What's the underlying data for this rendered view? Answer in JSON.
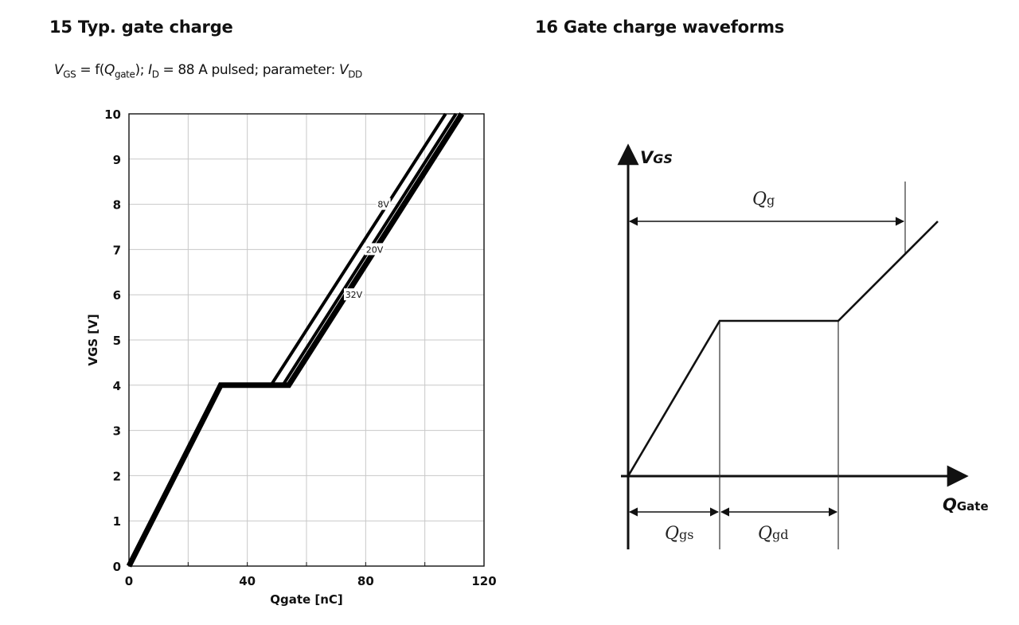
{
  "titles": {
    "left": "15 Typ. gate charge",
    "right": "16 Gate charge waveforms"
  },
  "subtitle": {
    "vgs_v": "V",
    "vgs_sub": "GS",
    "eq": " = f(",
    "q_q": "Q",
    "q_sub": "gate",
    "mid": "); ",
    "id_i": "I",
    "id_sub": "D",
    "rest": " = 88 A pulsed; parameter: ",
    "vdd_v": "V",
    "vdd_sub": "DD"
  },
  "chart_data": [
    {
      "type": "line",
      "xlabel": "Qgate [nC]",
      "ylabel": "VGS [V]",
      "xlim": [
        0,
        120
      ],
      "ylim": [
        0,
        10
      ],
      "x_ticks": [
        "0",
        "40",
        "80",
        "120"
      ],
      "y_ticks": [
        "0",
        "1",
        "2",
        "3",
        "4",
        "5",
        "6",
        "7",
        "8",
        "9",
        "10"
      ],
      "grid": true,
      "series": [
        {
          "name": "8V",
          "label_at": [
            86,
            8
          ],
          "points": [
            [
              0,
              0
            ],
            [
              31,
              4
            ],
            [
              48,
              4
            ],
            [
              107,
              10
            ]
          ]
        },
        {
          "name": "20V",
          "label_at": [
            83,
            7
          ],
          "points": [
            [
              0,
              0
            ],
            [
              31,
              4
            ],
            [
              52,
              4
            ],
            [
              110.5,
              10
            ]
          ]
        },
        {
          "name": "32V",
          "label_at": [
            76,
            6
          ],
          "points": [
            [
              0,
              0
            ],
            [
              31,
              4
            ],
            [
              54,
              4
            ],
            [
              112.5,
              10
            ]
          ]
        }
      ]
    },
    {
      "type": "line",
      "xlabel": "QGate",
      "ylabel": "VGS",
      "labels": {
        "y_main": "V",
        "y_sub": "GS",
        "x_main": "Q",
        "x_sub": "Gate",
        "qg_main": "Q",
        "qg_sub": "g",
        "qgs_main": "Q",
        "qgs_sub": "gs",
        "qgd_main": "Q",
        "qgd_sub": "gd"
      }
    }
  ]
}
